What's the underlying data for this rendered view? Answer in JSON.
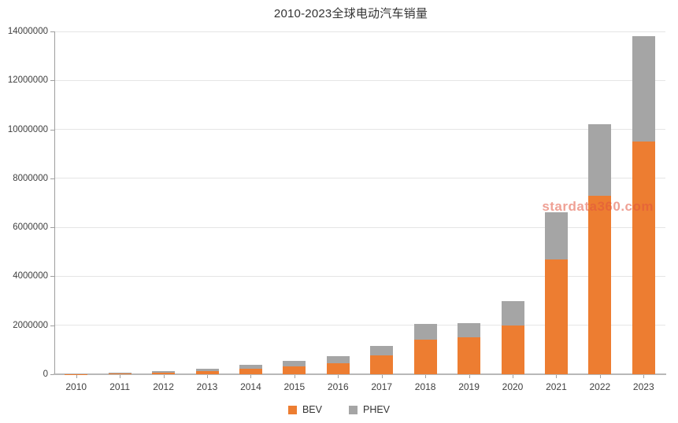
{
  "title": "2010-2023全球电动汽车销量",
  "watermark": "stardata360.com",
  "colors": {
    "bev": "#ED7D31",
    "phev": "#A5A5A5",
    "gridline": "#E5E5E5",
    "axis": "#9E9E9E",
    "text": "#404040",
    "title_text": "#333333",
    "watermark_text": "#E2543E"
  },
  "legend": {
    "position": "bottom",
    "items": [
      {
        "label": "BEV",
        "color": "#ED7D31"
      },
      {
        "label": "PHEV",
        "color": "#A5A5A5"
      }
    ]
  },
  "chart_data": {
    "type": "bar",
    "stacked": true,
    "title": "2010-2023全球电动汽车销量",
    "xlabel": "",
    "ylabel": "",
    "grid": true,
    "legend_position": "bottom",
    "ylim": [
      0,
      14000000
    ],
    "ytick_interval": 2000000,
    "ytick_labels": [
      "0",
      "2000000",
      "4000000",
      "6000000",
      "8000000",
      "10000000",
      "12000000",
      "14000000"
    ],
    "categories": [
      "2010",
      "2011",
      "2012",
      "2013",
      "2014",
      "2015",
      "2016",
      "2017",
      "2018",
      "2019",
      "2020",
      "2021",
      "2022",
      "2023"
    ],
    "series": [
      {
        "name": "BEV",
        "color": "#ED7D31",
        "values": [
          7000,
          45000,
          70000,
          135000,
          240000,
          330000,
          460000,
          770000,
          1400000,
          1500000,
          2000000,
          4700000,
          7300000,
          9500000
        ]
      },
      {
        "name": "PHEV",
        "color": "#A5A5A5",
        "values": [
          1000,
          15000,
          55000,
          100000,
          130000,
          220000,
          290000,
          400000,
          650000,
          580000,
          1000000,
          1900000,
          2900000,
          4300000
        ]
      }
    ]
  }
}
